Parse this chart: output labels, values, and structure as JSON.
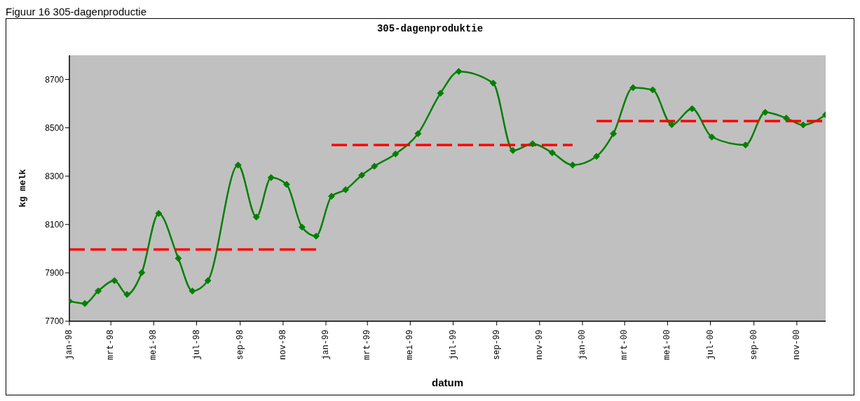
{
  "chart_data": {
    "type": "line",
    "title": "305-dagenproduktie",
    "xlabel": "datum",
    "ylabel": "kg melk",
    "annotations": [
      "Figuur 16 305-dagenproductie"
    ],
    "marker": "diamond",
    "line_style": "solid",
    "xlim": [
      "1998-01-01",
      "2000-12-12"
    ],
    "xticks": [
      {
        "value": "1998-01-01",
        "label": "jan-98"
      },
      {
        "value": "1998-03-01",
        "label": "mrt-98"
      },
      {
        "value": "1998-05-01",
        "label": "mei-98"
      },
      {
        "value": "1998-07-01",
        "label": "jul-98"
      },
      {
        "value": "1998-09-01",
        "label": "sep-98"
      },
      {
        "value": "1998-11-01",
        "label": "nov-98"
      },
      {
        "value": "1999-01-01",
        "label": "jan-99"
      },
      {
        "value": "1999-03-01",
        "label": "mrt-99"
      },
      {
        "value": "1999-05-01",
        "label": "mei-99"
      },
      {
        "value": "1999-07-01",
        "label": "jul-99"
      },
      {
        "value": "1999-09-01",
        "label": "sep-99"
      },
      {
        "value": "1999-11-01",
        "label": "nov-99"
      },
      {
        "value": "2000-01-01",
        "label": "jan-00"
      },
      {
        "value": "2000-03-01",
        "label": "mrt-00"
      },
      {
        "value": "2000-05-01",
        "label": "mei-00"
      },
      {
        "value": "2000-07-01",
        "label": "jul-00"
      },
      {
        "value": "2000-09-01",
        "label": "sep-00"
      },
      {
        "value": "2000-11-01",
        "label": "nov-00"
      }
    ],
    "ylim": [
      7700,
      8800
    ],
    "yticks": [
      7700,
      7900,
      8100,
      8300,
      8500,
      8700
    ],
    "series": [
      {
        "color": "#008000",
        "x": [
          "1998-01-01",
          "1998-01-23",
          "1998-02-11",
          "1998-03-06",
          "1998-03-24",
          "1998-04-14",
          "1998-05-08",
          "1998-06-05",
          "1998-06-25",
          "1998-07-17",
          "1998-08-29",
          "1998-09-24",
          "1998-10-15",
          "1998-11-06",
          "1998-11-28",
          "1998-12-18",
          "1999-01-09",
          "1999-01-29",
          "1999-02-21",
          "1999-03-11",
          "1999-04-10",
          "1999-05-12",
          "1999-06-13",
          "1999-07-09",
          "1999-08-27",
          "1999-09-24",
          "1999-10-22",
          "1999-11-19",
          "1999-12-18",
          "2000-01-21",
          "2000-02-14",
          "2000-03-13",
          "2000-04-10",
          "2000-05-07",
          "2000-06-05",
          "2000-07-03",
          "2000-08-20",
          "2000-09-17",
          "2000-10-17",
          "2000-11-10",
          "2000-12-12"
        ],
        "values": [
          7783,
          7773,
          7825,
          7868,
          7811,
          7901,
          8146,
          7960,
          7825,
          7868,
          8346,
          8131,
          8294,
          8266,
          8089,
          8052,
          8217,
          8244,
          8304,
          8341,
          8392,
          8476,
          8643,
          8733,
          8685,
          8406,
          8434,
          8397,
          8346,
          8382,
          8476,
          8666,
          8657,
          8513,
          8579,
          8462,
          8429,
          8564,
          8540,
          8512,
          8554
        ]
      },
      {
        "type": "line",
        "color": "#ff0000",
        "line_style": "dashed",
        "marker": "none",
        "x": [
          "1998-01-01",
          "1998-12-18"
        ],
        "values": [
          7997,
          7997
        ]
      },
      {
        "type": "line",
        "color": "#ff0000",
        "line_style": "dashed",
        "marker": "none",
        "x": [
          "1999-01-09",
          "1999-12-18"
        ],
        "values": [
          8429,
          8429
        ]
      },
      {
        "type": "line",
        "color": "#ff0000",
        "line_style": "dashed",
        "marker": "none",
        "x": [
          "2000-01-21",
          "2000-12-12"
        ],
        "values": [
          8528,
          8528
        ]
      }
    ]
  }
}
